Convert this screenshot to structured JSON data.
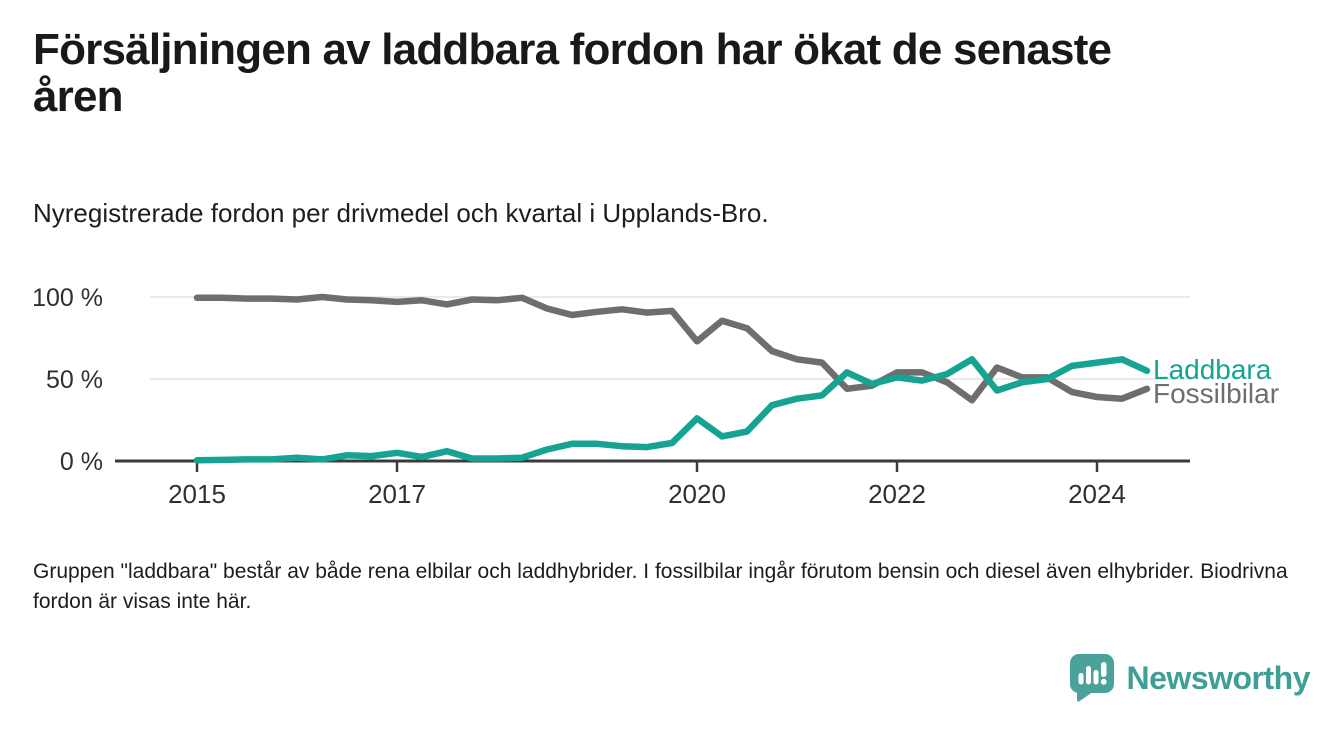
{
  "header": {
    "title_line1": "Försäljningen av laddbara fordon har ökat de senaste",
    "title_line2": "åren",
    "subtitle": "Nyregistrerade fordon per drivmedel och kvartal i Upplands-Bro."
  },
  "footer": {
    "note": "Gruppen \"laddbara\" består av både rena elbilar och laddhybrider. I fossilbilar ingår förutom bensin och diesel även elhybrider. Biodrivna fordon är visas inte här.",
    "brand": "Newsworthy"
  },
  "colors": {
    "laddbara": "#16a392",
    "fossilbilar": "#6e6e6e",
    "axis": "#3a3a3a",
    "grid": "#e4e4e4",
    "brand_teal": "#4ba29b",
    "brand_text": "#3f9f96"
  },
  "chart_data": {
    "type": "line",
    "unit": "%",
    "frequency": "quarterly",
    "ylim": [
      0,
      100
    ],
    "grid": "horizontal",
    "legend_position": "right-end-labels",
    "quarters": [
      "2015Q1",
      "2015Q2",
      "2015Q3",
      "2015Q4",
      "2016Q1",
      "2016Q2",
      "2016Q3",
      "2016Q4",
      "2017Q1",
      "2017Q2",
      "2017Q3",
      "2017Q4",
      "2018Q1",
      "2018Q2",
      "2018Q3",
      "2018Q4",
      "2019Q1",
      "2019Q2",
      "2019Q3",
      "2019Q4",
      "2020Q1",
      "2020Q2",
      "2020Q3",
      "2020Q4",
      "2021Q1",
      "2021Q2",
      "2021Q3",
      "2021Q4",
      "2022Q1",
      "2022Q2",
      "2022Q3",
      "2022Q4",
      "2023Q1",
      "2023Q2",
      "2023Q3",
      "2023Q4",
      "2024Q1",
      "2024Q2",
      "2024Q3"
    ],
    "x_ticks": [
      {
        "label": "2015",
        "index": 0
      },
      {
        "label": "2017",
        "index": 8
      },
      {
        "label": "2020",
        "index": 20
      },
      {
        "label": "2022",
        "index": 28
      },
      {
        "label": "2024",
        "index": 36
      }
    ],
    "y_ticks": [
      {
        "label": "100 %",
        "value": 100
      },
      {
        "label": "50 %",
        "value": 50
      },
      {
        "label": "0 %",
        "value": 0
      }
    ],
    "series": [
      {
        "name": "Laddbara",
        "color": "#16a392",
        "values": [
          0.5,
          0.7,
          1,
          1,
          2,
          1,
          3.5,
          3,
          5,
          2.5,
          6,
          1.5,
          1.5,
          2,
          7,
          10.5,
          10.5,
          9,
          8.5,
          11,
          26,
          15,
          18,
          34,
          38,
          40,
          54,
          47,
          51,
          49,
          53,
          62,
          43,
          48,
          50,
          58,
          60,
          62,
          55
        ]
      },
      {
        "name": "Fossilbilar",
        "color": "#6e6e6e",
        "values": [
          99.5,
          99.5,
          99,
          99,
          98.5,
          100,
          98.5,
          98,
          97,
          98,
          95.5,
          98.5,
          98,
          99.5,
          93,
          89,
          91,
          92.5,
          90.5,
          91.5,
          73,
          85.5,
          81,
          67,
          62,
          60,
          44,
          46,
          54,
          54,
          48,
          37,
          57,
          51,
          51,
          42,
          39,
          38,
          44
        ]
      }
    ]
  }
}
